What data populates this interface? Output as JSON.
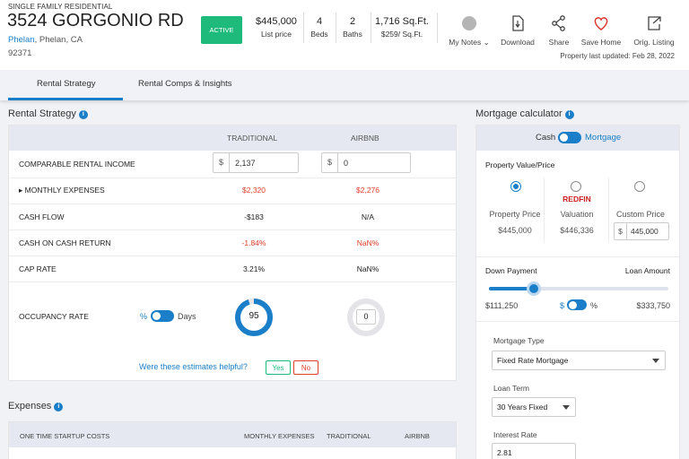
{
  "property": {
    "type": "SINGLE FAMILY RESIDENTIAL",
    "address": "3524 GORGONIO RD",
    "city_link": "Phelan",
    "city_rest": ", Phelan, CA",
    "zip": "92371",
    "status": "ACTIVE",
    "stats": [
      {
        "value": "$445,000",
        "label": "List price"
      },
      {
        "value": "4",
        "label": "Beds"
      },
      {
        "value": "2",
        "label": "Baths"
      },
      {
        "value": "1,716 Sq.Ft.",
        "label": "$259/ Sq.Ft."
      }
    ],
    "actions": {
      "notes": "My Notes",
      "download": "Download",
      "share": "Share",
      "save": "Save Home",
      "orig": "Orig. Listing"
    },
    "updated": "Property last updated: Feb 28, 2022"
  },
  "tabs": [
    "Rental Strategy",
    "Rental Comps & Insights"
  ],
  "rental": {
    "title": "Rental Strategy",
    "col_traditional": "TRADITIONAL",
    "col_airbnb": "AIRBNB",
    "currency": "$",
    "rows": {
      "income": {
        "label": "COMPARABLE RENTAL INCOME",
        "trad": "2,137",
        "airbnb": "0"
      },
      "expenses": {
        "label": "MONTHLY EXPENSES",
        "trad": "$2,320",
        "airbnb": "$2,276"
      },
      "cashflow": {
        "label": "CASH FLOW",
        "trad": "-$183",
        "airbnb": "N/A"
      },
      "coc": {
        "label": "CASH ON CASH RETURN",
        "trad": "-1.84%",
        "airbnb": "NaN%"
      },
      "cap": {
        "label": "CAP RATE",
        "trad": "3.21%",
        "airbnb": "NaN%"
      },
      "occupancy": {
        "label": "OCCUPANCY RATE",
        "pct": "%",
        "days": "Days",
        "trad": "95",
        "airbnb": "0",
        "trad_fraction": 0.95,
        "airbnb_fraction": 0
      }
    },
    "helpful_q": "Were these estimates helpful?",
    "yes": "Yes",
    "no": "No"
  },
  "expenses": {
    "title": "Expenses",
    "startup": "ONE TIME STARTUP COSTS",
    "monthly": "MONTHLY EXPENSES",
    "traditional": "TRADITIONAL",
    "airbnb": "AIRBNB"
  },
  "mortgage": {
    "title": "Mortgage calculator",
    "cash": "Cash",
    "mortgage": "Mortgage",
    "pv_label": "Property Value/Price",
    "options": [
      {
        "label": "Property Price",
        "value": "$445,000"
      },
      {
        "label": "Valuation",
        "value": "$446,336",
        "brand": "REDFIN"
      },
      {
        "label": "Custom Price",
        "value": "445,000",
        "currency": "$"
      }
    ],
    "down_payment": "Down Payment",
    "loan_amount": "Loan Amount",
    "down_value": "$111,250",
    "loan_value": "$333,750",
    "down_fraction": 0.25,
    "dollar": "$",
    "percent": "%",
    "type_label": "Mortgage Type",
    "type_value": "Fixed Rate Mortgage",
    "term_label": "Loan Term",
    "term_value": "30 Years Fixed",
    "rate_label": "Interest Rate",
    "rate_value": "2.81"
  },
  "colors": {
    "accent": "#1a7fc8",
    "active": "#1dba7c",
    "negative": "#e0402a"
  }
}
